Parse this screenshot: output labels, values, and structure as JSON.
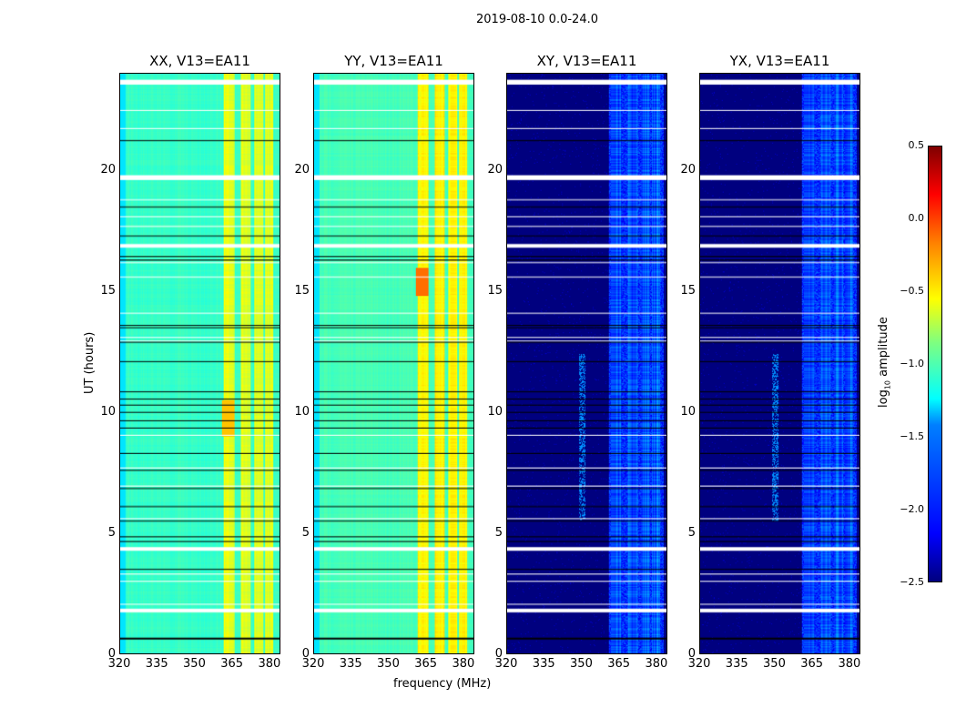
{
  "chart_data": {
    "type": "heatmap",
    "suptitle": "2019-08-10 0.0-24.0",
    "xlabel": "frequency (MHz)",
    "ylabel": "UT (hours)",
    "xlim": [
      320,
      384.4
    ],
    "ylim": [
      0,
      24
    ],
    "xticks": [
      "320",
      "335",
      "350",
      "365",
      "380"
    ],
    "yticks": [
      "0",
      "5",
      "10",
      "15",
      "20"
    ],
    "panels": [
      {
        "title": "XX, V13=EA11",
        "type": "parallel",
        "base_log_amp": -1.2,
        "bright_band_log_amp": -0.75
      },
      {
        "title": "YY, V13=EA11",
        "type": "parallel",
        "base_log_amp": -1.15,
        "bright_band_log_amp": -0.65
      },
      {
        "title": "XY, V13=EA11",
        "type": "cross",
        "base_log_amp": -2.5,
        "bright_band_log_amp": -1.6
      },
      {
        "title": "YX, V13=EA11",
        "type": "cross",
        "base_log_amp": -2.5,
        "bright_band_log_amp": -1.6
      }
    ],
    "bright_bands_mhz": [
      [
        361.5,
        366
      ],
      [
        368.5,
        372.5
      ],
      [
        374,
        377.5
      ],
      [
        378.5,
        381.5
      ]
    ],
    "flagged_white_hours": [
      [
        23.55,
        23.75
      ],
      [
        19.6,
        19.8
      ],
      [
        16.8,
        16.95
      ],
      [
        4.25,
        4.4
      ],
      [
        1.7,
        1.85
      ]
    ],
    "white_lines_hours": [
      22.5,
      21.75,
      18.8,
      18.1,
      17.7,
      16.2,
      15.6,
      14.1,
      13.1,
      12.95,
      9.05,
      7.7,
      6.95,
      5.6,
      3.3,
      3.0,
      2.05
    ],
    "black_lines_hours": [
      21.25,
      18.5,
      17.3,
      16.45,
      16.3,
      13.6,
      13.5,
      12.9,
      12.1,
      10.85,
      10.55,
      10.3,
      10.0,
      9.65,
      9.35,
      8.3,
      7.6,
      6.85,
      6.1,
      5.5,
      4.85,
      4.65,
      3.5,
      0.65
    ],
    "colorbar": {
      "label_base": "log",
      "label_subscript": "10",
      "label_text": "amplitude",
      "ticks": [
        "0.5",
        "0.0",
        "−0.5",
        "−1.0",
        "−1.5",
        "−2.0",
        "−2.5"
      ],
      "range": [
        -2.5,
        0.5
      ],
      "colormap": "jet"
    }
  }
}
